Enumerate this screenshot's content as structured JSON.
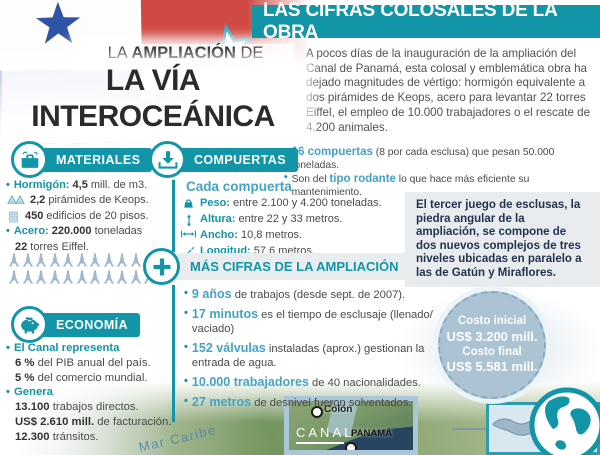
{
  "colors": {
    "teal": "#1295a6",
    "light_blue": "#44a3c4",
    "navy": "#22334e",
    "tower": "#a3b9cb",
    "cost_circle": "#abc3d3",
    "red_flag": "#d04a45",
    "blue_flag": "#2e54a5",
    "star_red": "#c8333f"
  },
  "icons": {
    "materials-icon": "toolbox",
    "gates-icon": "down-arrow-tray",
    "economy-icon": "piggy-bank",
    "plus-icon": "plus-cross",
    "eiffel-icon": "eiffel-tower",
    "pyramids-icon": "two-pyramids",
    "building-icon": "building-windows",
    "weight-icon": "weight-bag",
    "height-icon": "vertical-arrow",
    "width-icon": "horizontal-arrow",
    "length-icon": "diagonal-arrow",
    "globe-icon": "globe",
    "map-marker": "white-circle-pin",
    "star-icon": "star"
  },
  "header": {
    "title_pre": "LA ",
    "title_bold": "AMPLIACIÓN",
    "title_post": " DE",
    "title_main": "LA VÍA INTEROCEÁNICA",
    "banner": "LAS CIFRAS COLOSALES DE LA OBRA",
    "intro": "A pocos días de la inauguración de la ampliación del Canal de Panamá, esta colosal y emblemática obra ha dejado magnitudes de vértigo: hormigón equivalente a dos pirámides de Keops, acero para levantar 22 torres Eiffel, el empleo de 10.000 trabajadores o el rescate de 4.200 animales."
  },
  "sections": {
    "materiales": {
      "title": "MATERIALES",
      "lines": [
        {
          "bullet": true,
          "segments": [
            {
              "t": "Hormigón: ",
              "s": "tb"
            },
            {
              "t": "4,5",
              "s": "b"
            },
            {
              "t": " mill. de m3.",
              "s": "r"
            }
          ]
        },
        {
          "icon": "pyramids-icon",
          "segments": [
            {
              "t": "2,2",
              "s": "b"
            },
            {
              "t": " pirámides de Keops.",
              "s": "r"
            }
          ]
        },
        {
          "icon": "building-icon",
          "segments": [
            {
              "t": "450",
              "s": "b"
            },
            {
              "t": " edificios de 20 pisos.",
              "s": "r"
            }
          ]
        },
        {
          "bullet": true,
          "segments": [
            {
              "t": "Acero: ",
              "s": "tb"
            },
            {
              "t": "220.000",
              "s": "b"
            },
            {
              "t": " toneladas",
              "s": "r"
            }
          ]
        },
        {
          "indent": true,
          "segments": [
            {
              "t": "22",
              "s": "b"
            },
            {
              "t": " torres Eiffel.",
              "s": "r"
            }
          ]
        }
      ],
      "tower_rows": [
        11,
        11
      ]
    },
    "compuertas": {
      "title": "COMPUERTAS",
      "bullets": [
        {
          "bullet": true,
          "segments": [
            {
              "t": "16 compuertas",
              "s": "lb"
            },
            {
              "t": " (8 por cada esclusa) que pesan 50.000 toneladas.",
              "s": "r"
            }
          ]
        },
        {
          "bullet": true,
          "segments": [
            {
              "t": "Son del ",
              "s": "r"
            },
            {
              "t": "tipo rodante",
              "s": "lb"
            },
            {
              "t": " lo que hace más eficiente su mantenimiento.",
              "s": "r"
            }
          ]
        }
      ],
      "subtitle": "Cada compuerta",
      "specs": [
        {
          "icon": "weight-icon",
          "segments": [
            {
              "t": "Peso: ",
              "s": "tb"
            },
            {
              "t": "entre 2.100 y 4.200 toneladas.",
              "s": "r"
            }
          ]
        },
        {
          "icon": "height-icon",
          "segments": [
            {
              "t": "Altura: ",
              "s": "tb"
            },
            {
              "t": "entre 22 y 33 metros.",
              "s": "r"
            }
          ]
        },
        {
          "icon": "width-icon",
          "segments": [
            {
              "t": "Ancho: ",
              "s": "tb"
            },
            {
              "t": "10,8 metros.",
              "s": "r"
            }
          ]
        },
        {
          "icon": "length-icon",
          "segments": [
            {
              "t": "Longitud: ",
              "s": "tb"
            },
            {
              "t": "57,6 metros.",
              "s": "r"
            }
          ]
        }
      ]
    },
    "mas_cifras": {
      "title": "MÁS CIFRAS DE LA AMPLIACIÓN",
      "lines": [
        {
          "bullet": true,
          "segments": [
            {
              "t": "9 años",
              "s": "lb"
            },
            {
              "t": " de trabajos (desde sept. de 2007).",
              "s": "r"
            }
          ]
        },
        {
          "bullet": true,
          "segments": [
            {
              "t": "17 minutos",
              "s": "lb"
            },
            {
              "t": " es el tiempo de esclusaje (llenado/ vaciado)",
              "s": "r"
            }
          ]
        },
        {
          "bullet": true,
          "segments": [
            {
              "t": "152 válvulas",
              "s": "lb"
            },
            {
              "t": " instaladas (aprox.) gestionan la entrada de agua.",
              "s": "r"
            }
          ]
        },
        {
          "bullet": true,
          "segments": [
            {
              "t": "10.000 trabajadores",
              "s": "lb"
            },
            {
              "t": " de 40 nacionalidades.",
              "s": "r"
            }
          ]
        },
        {
          "bullet": true,
          "segments": [
            {
              "t": "27 metros",
              "s": "lb"
            },
            {
              "t": " de desnivel fueron solventados.",
              "s": "r"
            }
          ]
        }
      ]
    },
    "economia": {
      "title": "ECONOMÍA",
      "lines": [
        {
          "bullet": true,
          "segments": [
            {
              "t": "El Canal representa",
              "s": "tb"
            }
          ]
        },
        {
          "indent": true,
          "segments": [
            {
              "t": "6 %",
              "s": "b"
            },
            {
              "t": " del PIB anual del país.",
              "s": "r"
            }
          ]
        },
        {
          "indent": true,
          "segments": [
            {
              "t": "5 %",
              "s": "b"
            },
            {
              "t": " del comercio mundial.",
              "s": "r"
            }
          ]
        },
        {
          "bullet": true,
          "segments": [
            {
              "t": "Genera",
              "s": "tb"
            }
          ]
        },
        {
          "indent": true,
          "segments": [
            {
              "t": "13.100",
              "s": "b"
            },
            {
              "t": " trabajos directos.",
              "s": "r"
            }
          ]
        },
        {
          "indent": true,
          "segments": [
            {
              "t": "US$ 2.610 mill.",
              "s": "b"
            },
            {
              "t": " de facturación.",
              "s": "r"
            }
          ]
        },
        {
          "indent": true,
          "segments": [
            {
              "t": "12.300",
              "s": "b"
            },
            {
              "t": " tránsitos.",
              "s": "r"
            }
          ]
        }
      ]
    }
  },
  "note": "El tercer juego de esclusas, la piedra angular de la ampliación, se compone de dos nuevos complejos de tres niveles ubicadas en paralelo a las de Gatún y Miraflores.",
  "costos": {
    "label1": "Costo inicial",
    "value1": "US$ 3.200 mill.",
    "label2": "Costo final",
    "value2": "US$ 5.581 mill."
  },
  "map": {
    "sea": "Mar Caribe",
    "city": "Colón",
    "canal": "CANAL",
    "country": "PANAMÁ"
  }
}
